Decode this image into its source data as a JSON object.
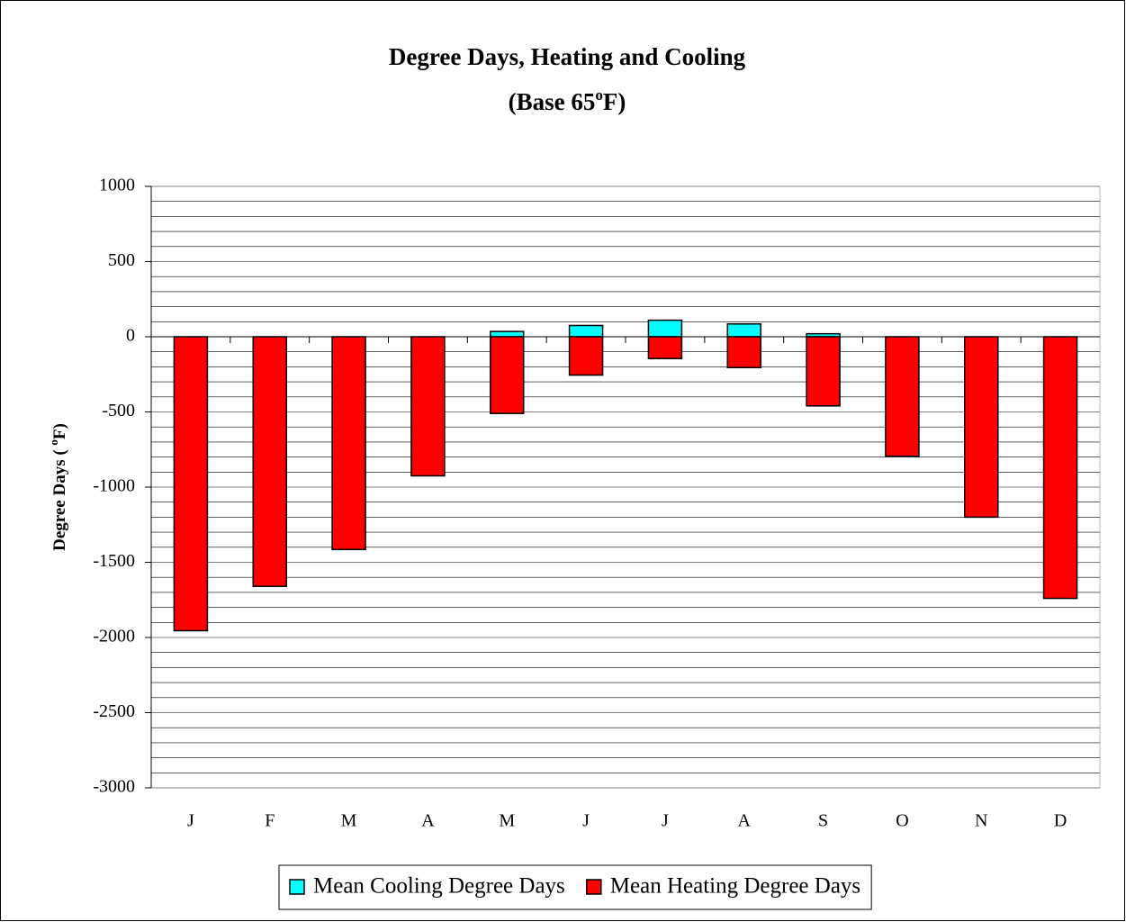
{
  "chart_data": {
    "type": "bar",
    "title": "Degree Days, Heating and Cooling",
    "subtitle": [
      "(Base 65",
      "o",
      "F)"
    ],
    "y_label": [
      "Degree Days ( ",
      "o",
      "F)"
    ],
    "categories": [
      "J",
      "F",
      "M",
      "A",
      "M",
      "J",
      "J",
      "A",
      "S",
      "O",
      "N",
      "D"
    ],
    "series": [
      {
        "name": "Mean Cooling Degree Days",
        "color": "#00ffff",
        "values": [
          0,
          0,
          0,
          0,
          35,
          75,
          110,
          85,
          20,
          0,
          0,
          0
        ]
      },
      {
        "name": "Mean Heating Degree Days",
        "color": "#ff0000",
        "values": [
          -1955,
          -1660,
          -1415,
          -925,
          -510,
          -255,
          -145,
          -205,
          -460,
          -795,
          -1200,
          -1740
        ]
      }
    ],
    "ylim": [
      -3000,
      1000
    ],
    "yticks": [
      -3000,
      -2500,
      -2000,
      -1500,
      -1000,
      -500,
      0,
      500,
      1000
    ],
    "grid": true,
    "minor_grid_step": 100,
    "legend": "bottom"
  }
}
